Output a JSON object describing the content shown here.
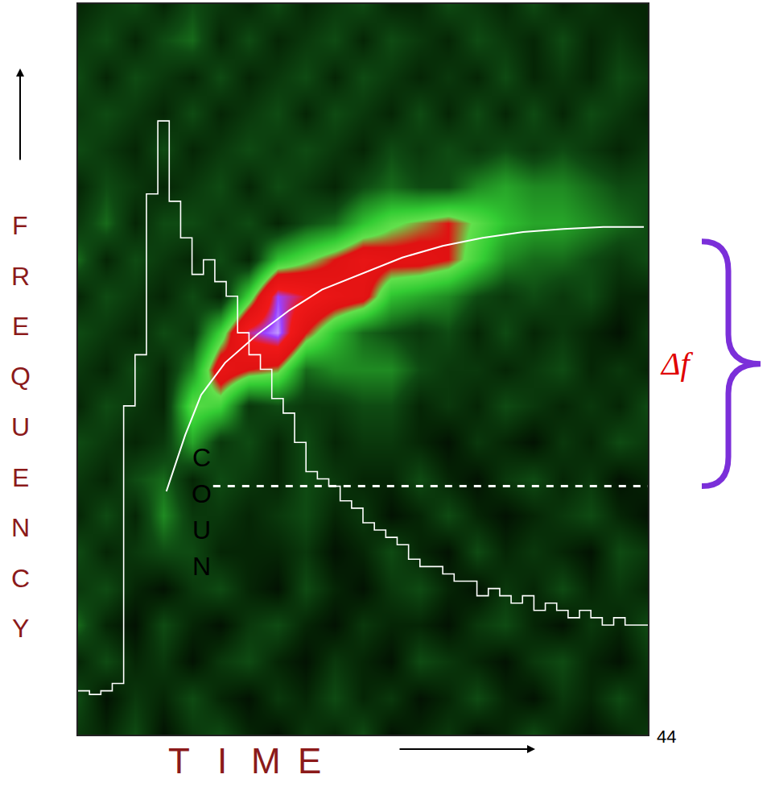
{
  "chart_data": {
    "type": "heatmap",
    "x_label": "TIME",
    "y_label": "FREQUENCY",
    "counts_label": "COUN",
    "slide_number": "44",
    "xlim": [
      0,
      100
    ],
    "ylim": [
      0,
      100
    ],
    "xticks": [],
    "yticks": [],
    "tick_labels": false,
    "grid": false,
    "heatmap": {
      "x": [
        0,
        5,
        10,
        15,
        20,
        25,
        30,
        35,
        40,
        45,
        50,
        55,
        60,
        65,
        70,
        75,
        80,
        85,
        90,
        95,
        100
      ],
      "y": [
        0,
        5,
        10,
        15,
        20,
        25,
        30,
        35,
        40,
        45,
        50,
        55,
        60,
        65,
        70,
        75,
        80,
        85,
        90,
        95,
        100
      ],
      "z_range": [
        0,
        10
      ],
      "z": [
        [
          1.5,
          1,
          2,
          0.5,
          1.5,
          2,
          1,
          0.5,
          1.5,
          1,
          2,
          0.5,
          1,
          1.5,
          0.5,
          1,
          2,
          1,
          0.5,
          1,
          1.5
        ],
        [
          2,
          0.5,
          1.5,
          1,
          2,
          1,
          0.5,
          1.5,
          1,
          2,
          1,
          1.5,
          0.5,
          1,
          2,
          1,
          0.5,
          1.5,
          1,
          2,
          1
        ],
        [
          1,
          2,
          1,
          1.5,
          0.5,
          1.5,
          2,
          1,
          0.5,
          1.5,
          1,
          0.5,
          2,
          1.5,
          1,
          0.5,
          1.5,
          2,
          1,
          0.5,
          1.5
        ],
        [
          2.5,
          1,
          0.5,
          2,
          1,
          0.5,
          1.5,
          2,
          1,
          0.5,
          1.5,
          1,
          1,
          0.5,
          1.5,
          2,
          1,
          0.5,
          1.5,
          1,
          2
        ],
        [
          1.5,
          2,
          1,
          0.5,
          1.5,
          2,
          1,
          0.5,
          2,
          1,
          0.5,
          1.5,
          2,
          1,
          0.5,
          1.5,
          1,
          2,
          1,
          1.5,
          1
        ],
        [
          2,
          1,
          1.5,
          2,
          2,
          1,
          1,
          1,
          1.5,
          0.5,
          1,
          2,
          1,
          0.5,
          2,
          1,
          1.5,
          1,
          0.5,
          2,
          1.5
        ],
        [
          1,
          2,
          1,
          3,
          1.5,
          1.5,
          1,
          1.5,
          2,
          1,
          1.5,
          0.5,
          1,
          2,
          1,
          0.5,
          1,
          1.5,
          2,
          1,
          0.5
        ],
        [
          1.5,
          1,
          2,
          2.5,
          1,
          2,
          1.5,
          1,
          2,
          1.5,
          1,
          1,
          2,
          1,
          0.5,
          1.5,
          2,
          1,
          1.5,
          0.5,
          1
        ],
        [
          2,
          1.5,
          1,
          1.5,
          3.5,
          1.5,
          2,
          1,
          2,
          1,
          1.5,
          1.5,
          1,
          0.5,
          1.5,
          1,
          0.5,
          1.5,
          1,
          2,
          1.5
        ],
        [
          1,
          2,
          1.5,
          1,
          5,
          4.5,
          1.5,
          2,
          1.5,
          1.5,
          2,
          2,
          1,
          1.5,
          1,
          2,
          1.5,
          1,
          1.5,
          1,
          2
        ],
        [
          1.5,
          1,
          2,
          1,
          3,
          7,
          6,
          5.5,
          2.5,
          3,
          3,
          3,
          2,
          1.5,
          1.5,
          1,
          1.5,
          2,
          1,
          1.5,
          1
        ],
        [
          2,
          1.5,
          1,
          2,
          1.5,
          4.5,
          8.5,
          9.5,
          6,
          4,
          2.5,
          2,
          1.5,
          2,
          1,
          2,
          1,
          1.5,
          1,
          0.5,
          1.5
        ],
        [
          1,
          2,
          1.5,
          1,
          2,
          1,
          4.5,
          9,
          8,
          7,
          6.5,
          4,
          3.5,
          3,
          2,
          1.5,
          2,
          1.5,
          2,
          1,
          1
        ],
        [
          2.5,
          1,
          2,
          1.5,
          1,
          2,
          1,
          4,
          5,
          6,
          7,
          6.5,
          6.5,
          6,
          4.5,
          3,
          2.5,
          2.5,
          2,
          1.5,
          2
        ],
        [
          1.5,
          2.5,
          1,
          2,
          2,
          1.5,
          2,
          1,
          2,
          2.5,
          4,
          5,
          5.5,
          6,
          5,
          4,
          3.5,
          3.5,
          3,
          2.5,
          2
        ],
        [
          1,
          2,
          1.5,
          1,
          1.5,
          2,
          1,
          2,
          1.5,
          1,
          2,
          2.5,
          2,
          2,
          3,
          3.5,
          3,
          3,
          2.5,
          2,
          2
        ],
        [
          2,
          1.5,
          1,
          2,
          1,
          1.5,
          2,
          1.5,
          2,
          1.5,
          1,
          2,
          1.5,
          2,
          1.5,
          2,
          1.5,
          2,
          1.5,
          1,
          1.5
        ],
        [
          1.5,
          2,
          1.5,
          1,
          2,
          1,
          1.5,
          2,
          1,
          2,
          1.5,
          1,
          2,
          1,
          2,
          1,
          2,
          1,
          2,
          1.5,
          1
        ],
        [
          2,
          1,
          2,
          1.5,
          1,
          2,
          1,
          1.5,
          2,
          1,
          2,
          1.5,
          1,
          1.5,
          1,
          2,
          1,
          1.5,
          1,
          2,
          1.5
        ],
        [
          1.5,
          2,
          1,
          2,
          2.5,
          1,
          2,
          1,
          1.5,
          2,
          1,
          2,
          1.5,
          1,
          2,
          1.5,
          1,
          2,
          1,
          1.5,
          1
        ],
        [
          1,
          1.5,
          2,
          1,
          2,
          1.5,
          1,
          2,
          1,
          1.5,
          2,
          1,
          1,
          2,
          1.5,
          1,
          2,
          1,
          1.5,
          1,
          1
        ]
      ]
    },
    "series": [
      {
        "type": "step",
        "color": "#ffffff",
        "line_style": "solid",
        "x": [
          0,
          2,
          4,
          6,
          8,
          10,
          12,
          14,
          16,
          18,
          20,
          22,
          24,
          26,
          28,
          30,
          32,
          34,
          36,
          38,
          40,
          42,
          44,
          46,
          48,
          50,
          52,
          54,
          56,
          58,
          60,
          62,
          64,
          66,
          68,
          70,
          72,
          74,
          76,
          78,
          80,
          82,
          84,
          86,
          88,
          90,
          92,
          94,
          96,
          98,
          100
        ],
        "values": [
          6,
          5.5,
          6,
          7,
          45,
          52,
          74,
          84,
          73,
          68,
          63,
          65,
          62,
          60,
          55,
          52,
          50,
          46,
          44,
          40,
          36,
          35,
          34,
          32,
          31,
          29,
          28,
          27,
          26,
          24,
          23,
          23,
          22,
          21,
          21,
          19,
          20,
          19,
          18,
          19,
          17,
          18,
          17,
          16,
          17,
          16,
          15,
          16,
          15,
          15,
          15
        ]
      },
      {
        "type": "line",
        "color": "#ffffff",
        "line_style": "solid",
        "x": [
          15.5,
          18.8,
          21.6,
          25.8,
          31.5,
          37.1,
          42.8,
          49.9,
          56.9,
          64.0,
          71.0,
          78.1,
          85.2,
          92.2,
          99.3
        ],
        "values": [
          33.3,
          41.0,
          46.5,
          50.9,
          54.8,
          58.1,
          60.9,
          63.1,
          65.3,
          66.9,
          68.0,
          68.8,
          69.2,
          69.5,
          69.5
        ]
      },
      {
        "type": "line",
        "color": "#ffffff",
        "line_style": "dashed",
        "x": [
          23.7,
          100
        ],
        "values": [
          34,
          34
        ]
      }
    ],
    "delta_f": {
      "label": "Δf",
      "range": [
        34,
        67.5
      ],
      "color": "#e00000",
      "brace_color": "#7b2fd9"
    }
  }
}
